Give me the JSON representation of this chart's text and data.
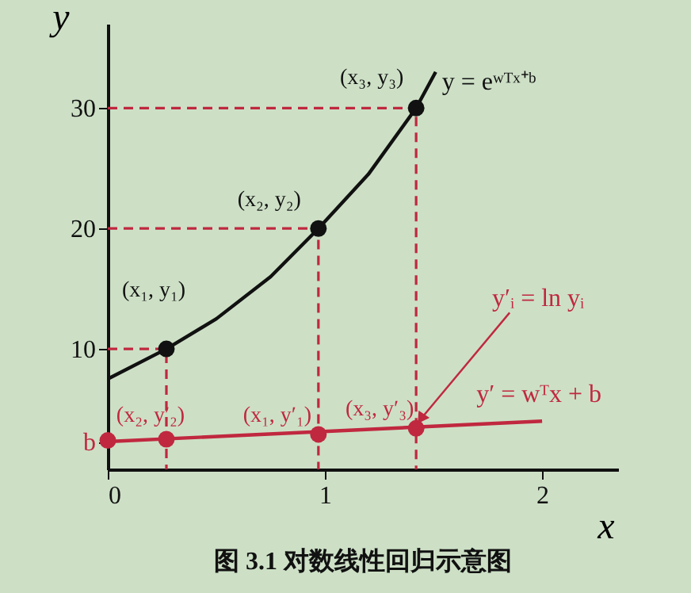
{
  "chart_data": {
    "type": "line",
    "title": "图 3.1  对数线性回归示意图",
    "xlabel": "x",
    "ylabel": "y",
    "xlim": [
      0,
      2.35
    ],
    "ylim": [
      0,
      37
    ],
    "xticks": [
      0,
      1,
      2
    ],
    "yticks": [
      {
        "value": 2.3,
        "label": "b"
      },
      10,
      20,
      30
    ],
    "grid": false,
    "series": [
      {
        "color": "#111111",
        "x": [
          0,
          0.27,
          0.5,
          0.75,
          0.97,
          1.2,
          1.42,
          1.51
        ],
        "values": [
          7.5,
          10,
          12.5,
          16,
          20,
          24.5,
          30,
          33
        ],
        "marker": "none",
        "line_style": "solid"
      },
      {
        "color": "#c0283f",
        "x": [
          0,
          2
        ],
        "values": [
          2.3,
          4.0
        ],
        "marker": "none",
        "line_style": "solid"
      },
      {
        "type": "line",
        "color": "#c0283f",
        "x": [
          0,
          0.27,
          0.27
        ],
        "values": [
          10,
          10,
          0
        ],
        "marker": "none",
        "line_style": "dashed"
      },
      {
        "type": "line",
        "color": "#c0283f",
        "x": [
          0,
          0.97,
          0.97
        ],
        "values": [
          20,
          20,
          0
        ],
        "marker": "none",
        "line_style": "dashed"
      },
      {
        "type": "line",
        "color": "#c0283f",
        "x": [
          0,
          1.42,
          1.42
        ],
        "values": [
          30,
          30,
          0
        ],
        "marker": "none",
        "line_style": "dashed"
      },
      {
        "type": "scatter",
        "color": "#111111",
        "x": [
          0.27,
          0.97,
          1.42
        ],
        "values": [
          10,
          20,
          30
        ],
        "marker": "circle"
      },
      {
        "type": "scatter",
        "color": "#c0283f",
        "x": [
          0,
          0.27,
          0.97,
          1.42
        ],
        "values": [
          2.4,
          2.5,
          2.9,
          3.4
        ],
        "marker": "circle"
      }
    ],
    "annotations": [
      {
        "text": "(x₁, y₁)",
        "x": 0.27,
        "y": 10
      },
      {
        "text": "(x₂, y₂)",
        "x": 0.97,
        "y": 20
      },
      {
        "text": "(x₃, y₃)",
        "x": 1.42,
        "y": 30
      },
      {
        "text": "y = eʷᵀˣ⁺ᵇ",
        "x": 1.51,
        "y": 33
      },
      {
        "text": "(x₂, y′₂)",
        "x": 0.27,
        "y": 2.5
      },
      {
        "text": "(x₁, y′₁)",
        "x": 0.97,
        "y": 2.9
      },
      {
        "text": "(x₃, y′₃)",
        "x": 1.42,
        "y": 3.4
      },
      {
        "text": "y′ = wᵀx + b",
        "x": 2,
        "y": 4.0
      },
      {
        "text": "y′ᵢ = ln yᵢ",
        "x": 1.42,
        "y": 3.4
      }
    ]
  }
}
